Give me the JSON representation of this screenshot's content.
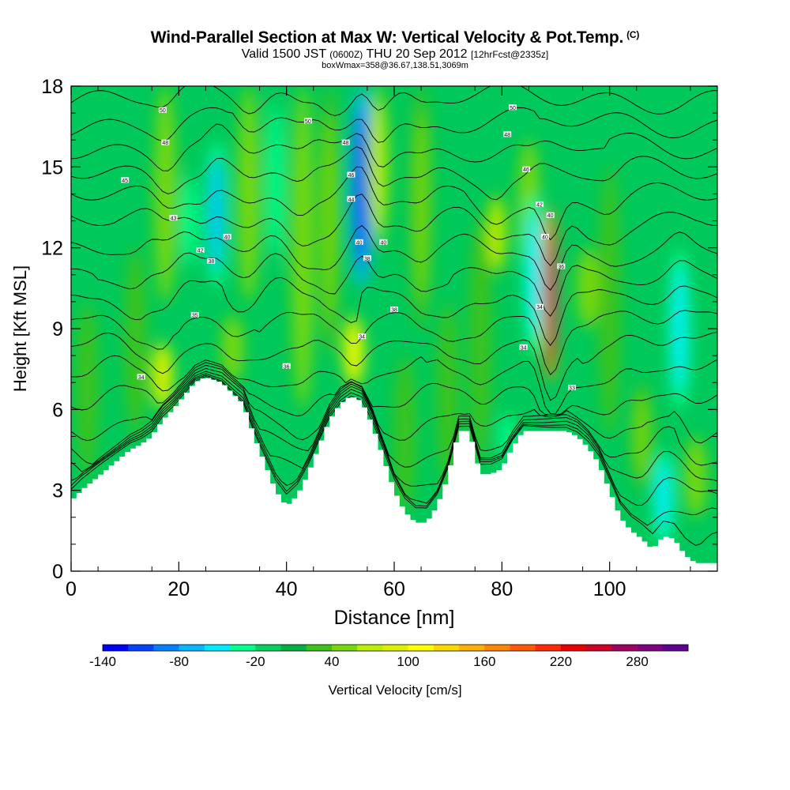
{
  "title": {
    "main": "Wind-Parallel Section at Max W: Vertical Velocity & Pot.Temp.",
    "copyright": "(C)",
    "valid_prefix": "Valid 1500 JST",
    "valid_utc": "(0600Z)",
    "valid_date": "THU 20 Sep 2012",
    "forecast": "[12hrFcst@2335z]",
    "box_wmax": "boxWmax=358@36.67,138.51,3069m"
  },
  "chart_data": {
    "type": "heatmap",
    "xlabel": "Distance [nm]",
    "ylabel": "Height [Kft MSL]",
    "xlim": [
      0,
      120
    ],
    "ylim": [
      0,
      18
    ],
    "xticks": [
      0,
      20,
      40,
      60,
      80,
      100
    ],
    "yticks": [
      0,
      3,
      6,
      9,
      12,
      15,
      18
    ],
    "terrain": {
      "x": [
        0,
        2,
        5,
        8,
        11,
        13,
        15,
        17,
        19,
        21,
        23,
        25,
        28,
        30,
        32,
        34,
        36,
        38,
        40,
        42,
        44,
        46,
        48,
        50,
        52,
        54,
        56,
        58,
        60,
        62,
        64,
        66,
        68,
        70,
        72,
        74,
        76,
        78,
        80,
        82,
        84,
        86,
        88,
        90,
        92,
        94,
        96,
        98,
        100,
        102,
        104,
        106,
        108,
        110,
        112,
        114,
        116,
        118,
        120
      ],
      "height_kft": [
        2.6,
        3.0,
        3.5,
        4.0,
        4.5,
        4.7,
        5.0,
        5.6,
        6.0,
        6.5,
        7.0,
        7.2,
        7.0,
        6.6,
        6.2,
        5.0,
        4.0,
        3.0,
        2.4,
        2.8,
        3.6,
        4.6,
        5.6,
        6.2,
        6.5,
        6.3,
        5.4,
        4.2,
        3.0,
        2.2,
        1.8,
        1.8,
        2.4,
        3.5,
        5.2,
        5.2,
        3.6,
        3.6,
        3.8,
        4.6,
        5.2,
        5.2,
        5.2,
        5.2,
        5.2,
        5.0,
        4.6,
        4.0,
        3.0,
        2.0,
        1.5,
        1.2,
        0.8,
        1.3,
        1.2,
        0.6,
        0.3,
        0.3,
        0.3
      ]
    },
    "velocity_features": [
      {
        "x": 3,
        "ylo": 3.5,
        "yhi": 10,
        "w": 35
      },
      {
        "x": 12,
        "ylo": 5,
        "yhi": 12,
        "w": 45
      },
      {
        "x": 17,
        "ylo": 6,
        "yhi": 8.5,
        "w": 95
      },
      {
        "x": 17.5,
        "ylo": 10,
        "yhi": 18,
        "w": 60
      },
      {
        "x": 22,
        "ylo": 11,
        "yhi": 15,
        "w": -45
      },
      {
        "x": 27,
        "ylo": 10.5,
        "yhi": 16,
        "w": -85
      },
      {
        "x": 30,
        "ylo": 7,
        "yhi": 9.5,
        "w": 55
      },
      {
        "x": 33,
        "ylo": 10,
        "yhi": 18,
        "w": 55
      },
      {
        "x": 38,
        "ylo": 11,
        "yhi": 18,
        "w": -35
      },
      {
        "x": 43,
        "ylo": 6,
        "yhi": 18,
        "w": 55
      },
      {
        "x": 48,
        "ylo": 8,
        "yhi": 18,
        "w": 50
      },
      {
        "x": 52.5,
        "ylo": 6.8,
        "yhi": 9.5,
        "w": 115
      },
      {
        "x": 54,
        "ylo": 10.5,
        "yhi": 18,
        "w": -130
      },
      {
        "x": 57,
        "ylo": 12,
        "yhi": 18,
        "w": 75
      },
      {
        "x": 62,
        "ylo": 2.2,
        "yhi": 8,
        "w": 40
      },
      {
        "x": 65,
        "ylo": 9,
        "yhi": 18,
        "w": 50
      },
      {
        "x": 70,
        "ylo": 3,
        "yhi": 10,
        "w": 35
      },
      {
        "x": 76,
        "ylo": 4,
        "yhi": 13,
        "w": 45
      },
      {
        "x": 79,
        "ylo": 11,
        "yhi": 14,
        "w": 75
      },
      {
        "x": 81,
        "ylo": 4,
        "yhi": 6,
        "w": -40
      },
      {
        "x": 85,
        "ylo": 11,
        "yhi": 16,
        "w": 55
      },
      {
        "x": 86,
        "ylo": 8,
        "yhi": 14,
        "w": -55
      },
      {
        "x": 89,
        "ylo": 7,
        "yhi": 13.5,
        "w": 290
      },
      {
        "x": 96,
        "ylo": 9,
        "yhi": 12,
        "w": 60
      },
      {
        "x": 100,
        "ylo": 5,
        "yhi": 15,
        "w": 45
      },
      {
        "x": 106,
        "ylo": 3,
        "yhi": 7,
        "w": 50
      },
      {
        "x": 110,
        "ylo": 1,
        "yhi": 4.5,
        "w": -55
      },
      {
        "x": 113,
        "ylo": 6,
        "yhi": 12,
        "w": -60
      },
      {
        "x": 116,
        "ylo": 2,
        "yhi": 5,
        "w": 65
      }
    ],
    "theta_contours": {
      "levels_c": [
        28,
        30,
        32,
        34,
        36,
        38,
        40,
        42,
        44,
        46,
        48,
        50,
        52,
        54,
        56,
        58,
        60,
        62,
        64
      ],
      "printed_labels": [
        {
          "x": 13,
          "y": 7.2,
          "text": "34"
        },
        {
          "x": 23,
          "y": 9.5,
          "text": "35"
        },
        {
          "x": 40,
          "y": 7.6,
          "text": "36"
        },
        {
          "x": 60,
          "y": 9.7,
          "text": "38"
        },
        {
          "x": 54,
          "y": 8.7,
          "text": "34"
        },
        {
          "x": 26,
          "y": 11.5,
          "text": "38"
        },
        {
          "x": 29,
          "y": 12.4,
          "text": "40"
        },
        {
          "x": 24,
          "y": 11.9,
          "text": "42"
        },
        {
          "x": 19,
          "y": 13.1,
          "text": "43"
        },
        {
          "x": 10,
          "y": 14.5,
          "text": "45"
        },
        {
          "x": 17.5,
          "y": 15.9,
          "text": "48"
        },
        {
          "x": 17,
          "y": 17.1,
          "text": "50"
        },
        {
          "x": 44,
          "y": 16.7,
          "text": "50"
        },
        {
          "x": 51,
          "y": 15.9,
          "text": "48"
        },
        {
          "x": 52,
          "y": 14.7,
          "text": "46"
        },
        {
          "x": 52,
          "y": 13.8,
          "text": "44"
        },
        {
          "x": 53.5,
          "y": 12.2,
          "text": "40"
        },
        {
          "x": 55,
          "y": 11.6,
          "text": "38"
        },
        {
          "x": 58,
          "y": 12.2,
          "text": "40"
        },
        {
          "x": 82,
          "y": 17.2,
          "text": "50"
        },
        {
          "x": 81,
          "y": 16.2,
          "text": "48"
        },
        {
          "x": 84.5,
          "y": 14.9,
          "text": "46"
        },
        {
          "x": 87,
          "y": 13.6,
          "text": "42"
        },
        {
          "x": 89,
          "y": 13.2,
          "text": "40"
        },
        {
          "x": 88,
          "y": 12.4,
          "text": "40"
        },
        {
          "x": 91,
          "y": 11.3,
          "text": "36"
        },
        {
          "x": 87,
          "y": 9.8,
          "text": "34"
        },
        {
          "x": 84,
          "y": 8.3,
          "text": "34"
        },
        {
          "x": 93,
          "y": 6.8,
          "text": "33"
        }
      ]
    },
    "colorbar": {
      "label": "Vertical Velocity [cm/s]",
      "min": -140,
      "step": 20,
      "tick_labels": [
        "-140",
        "-80",
        "-20",
        "40",
        "100",
        "160",
        "220",
        "280"
      ],
      "colors": [
        "#0000ff",
        "#0044ff",
        "#0080ff",
        "#00b8ff",
        "#00e8ff",
        "#00ff8c",
        "#00d060",
        "#00b040",
        "#3cc31a",
        "#78d80e",
        "#bbee00",
        "#ddf000",
        "#ffff00",
        "#ffd700",
        "#ffaf00",
        "#ff8700",
        "#ff5a00",
        "#ff2a00",
        "#e80000",
        "#cc0028",
        "#a00060",
        "#800080",
        "#600090"
      ]
    }
  }
}
